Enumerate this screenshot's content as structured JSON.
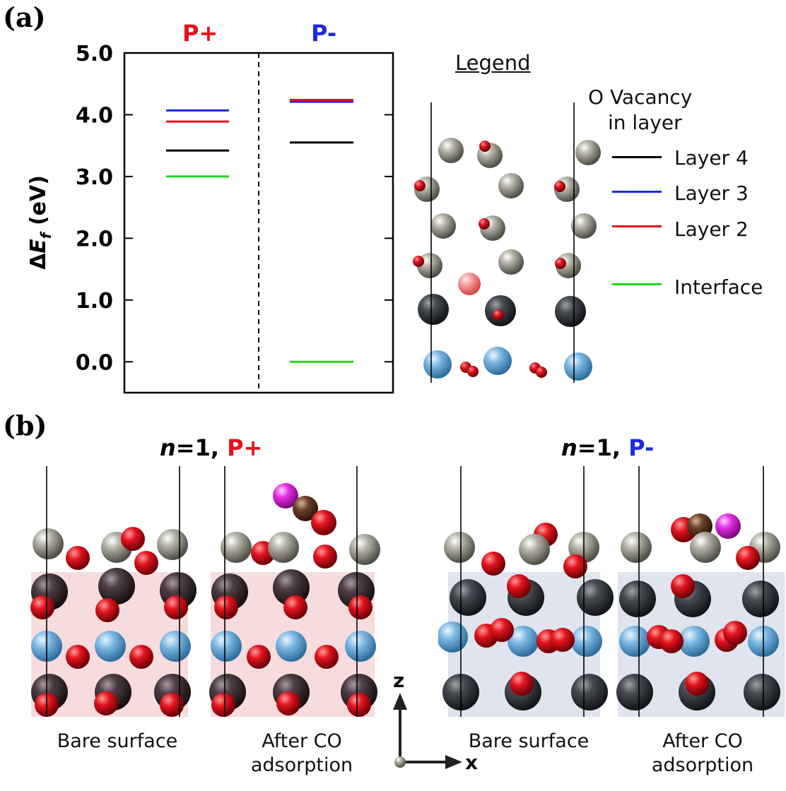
{
  "panel_a": {
    "label": "(a)",
    "column_labels": {
      "left": "P+",
      "right": "P-"
    },
    "colors": {
      "p_plus": "#e8101a",
      "p_minus": "#1a2be0"
    },
    "axis": {
      "ylabel_delta": "Δ",
      "ylabel_E": "E",
      "ylabel_sub": "f",
      "ylabel_unit": " (eV)",
      "ylim": [
        -0.5,
        5.0
      ]
    },
    "chart_data": {
      "type": "level-diagram",
      "title": "",
      "ylabel": "ΔEf (eV)",
      "ylim": [
        -0.5,
        5.0
      ],
      "yticks": [
        0.0,
        1.0,
        2.0,
        3.0,
        4.0,
        5.0
      ],
      "ytick_labels": [
        "0.0",
        "1.0",
        "2.0",
        "3.0",
        "4.0",
        "5.0"
      ],
      "categories": [
        "P+",
        "P-"
      ],
      "series": [
        {
          "name": "Layer 4",
          "color": "#000000",
          "values": [
            3.42,
            3.55
          ]
        },
        {
          "name": "Layer 3",
          "color": "#1a2be0",
          "values": [
            4.07,
            4.21
          ]
        },
        {
          "name": "Layer 2",
          "color": "#e8101a",
          "values": [
            3.89,
            4.24
          ]
        },
        {
          "name": "Interface",
          "color": "#22d622",
          "values": [
            3.0,
            0.0
          ]
        }
      ]
    },
    "legend": {
      "title": "Legend",
      "subtitle_line1": "O Vacancy",
      "subtitle_line2": "in layer",
      "entries": [
        {
          "label": "Layer 4",
          "color": "#000000"
        },
        {
          "label": "Layer 3",
          "color": "#1a2be0"
        },
        {
          "label": "Layer 2",
          "color": "#e8101a"
        },
        {
          "label": "Interface",
          "color": "#22d622"
        }
      ]
    }
  },
  "panel_b": {
    "label": "(b)",
    "groups": [
      {
        "n_label": "n",
        "eq_label": "=1, ",
        "pol_label": "P+",
        "pol_color": "#e8101a"
      },
      {
        "n_label": "n",
        "eq_label": "=1, ",
        "pol_label": "P-",
        "pol_color": "#1a2be0"
      }
    ],
    "captions": {
      "bare_1": "Bare surface",
      "after_1_line1": "After CO",
      "after_1_line2": "adsorption",
      "bare_2": "Bare surface",
      "after_2_line1": "After CO",
      "after_2_line2": "adsorption"
    },
    "axes_labels": {
      "z": "z",
      "x": "x"
    }
  }
}
